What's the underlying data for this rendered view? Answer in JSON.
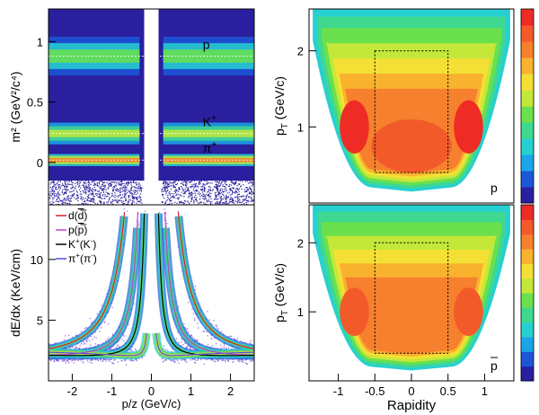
{
  "chart_data": [
    {
      "type": "heatmap",
      "panel": "top-left",
      "title": "",
      "xlabel": "",
      "ylabel": "m² (GeV²/c⁴)",
      "xlim": [
        -2.6,
        2.6
      ],
      "ylim": [
        -0.35,
        1.27
      ],
      "yticks": [
        0,
        0.5,
        1
      ],
      "ytick_labels": [
        "0",
        "0.5",
        "1"
      ],
      "bands": [
        {
          "label": "p",
          "label_sup": "",
          "m2": 0.88
        },
        {
          "label": "K",
          "label_sup": "+",
          "m2": 0.24
        },
        {
          "label": "π",
          "label_sup": "+",
          "m2": 0.02
        }
      ],
      "grid": false
    },
    {
      "type": "heatmap",
      "panel": "bottom-left",
      "title": "",
      "xlabel": "p/z (GeV/c)",
      "ylabel": "dE/dx (KeV/cm)",
      "xlim": [
        -2.6,
        2.6
      ],
      "ylim": [
        0,
        14.5
      ],
      "xticks": [
        -2,
        -1,
        0,
        1,
        2
      ],
      "xtick_labels": [
        "-2",
        "-1",
        "0",
        "1",
        "2"
      ],
      "yticks": [
        5,
        10
      ],
      "ytick_labels": [
        "5",
        "10"
      ],
      "legend_position": "top-left",
      "series": [
        {
          "name": "d(d̄)",
          "name_main": "d(",
          "name_bar": "d",
          "name_end": ")",
          "name_sup": "",
          "name_sup2": "",
          "color": "#e0202a",
          "mass": 1.876
        },
        {
          "name": "p(p̄)",
          "name_main": "p(",
          "name_bar": "p",
          "name_end": ")",
          "name_sup": "",
          "name_sup2": "",
          "color": "#c040c8",
          "mass": 0.938
        },
        {
          "name": "K⁺(K⁻)",
          "name_main": "K",
          "name_bar": "",
          "name_end": "(K",
          "name_sup": "+",
          "name_sup2": "-",
          "color": "#000000",
          "mass": 0.494
        },
        {
          "name": "π⁺(π⁻)",
          "name_main": "π",
          "name_bar": "",
          "name_end": "(π",
          "name_sup": "+",
          "name_sup2": "-",
          "color": "#5050e0",
          "mass": 0.1396
        }
      ],
      "grid": false
    },
    {
      "type": "heatmap",
      "panel": "top-right",
      "title": "",
      "xlabel": "",
      "ylabel": "pT (GeV/c)",
      "ylabel_main": "p",
      "ylabel_sub": "T",
      "ylabel_rest": " (GeV/c)",
      "xlim": [
        -1.4,
        1.4
      ],
      "ylim": [
        0,
        2.55
      ],
      "yticks": [
        1,
        2
      ],
      "ytick_labels": [
        "1",
        "2"
      ],
      "particle_label": "p",
      "particle_bar": false,
      "acceptance_box": {
        "rapidity": [
          -0.5,
          0.5
        ],
        "pt": [
          0.4,
          2.0
        ]
      },
      "grid": false
    },
    {
      "type": "heatmap",
      "panel": "bottom-right",
      "title": "",
      "xlabel": "Rapidity",
      "ylabel": "pT (GeV/c)",
      "ylabel_main": "p",
      "ylabel_sub": "T",
      "ylabel_rest": " (GeV/c)",
      "xlim": [
        -1.4,
        1.4
      ],
      "ylim": [
        0,
        2.55
      ],
      "xticks": [
        -1,
        -0.5,
        0,
        0.5,
        1
      ],
      "xtick_labels": [
        "-1",
        "-0.5",
        "0",
        "0.5",
        "1"
      ],
      "yticks": [
        1,
        2
      ],
      "ytick_labels": [
        "1",
        "2"
      ],
      "particle_label": "p",
      "particle_bar": true,
      "acceptance_box": {
        "rapidity": [
          -0.5,
          0.5
        ],
        "pt": [
          0.4,
          2.0
        ]
      },
      "grid": false
    }
  ],
  "colors": {
    "palette": [
      "#ffffff",
      "#2a1f9e",
      "#1c57d8",
      "#1aa6e6",
      "#27d0d0",
      "#3fd890",
      "#6ae04c",
      "#c4e83a",
      "#f4e034",
      "#f9b22e",
      "#f6802d",
      "#f35a2a",
      "#ef2b25"
    ],
    "axis": "#000000",
    "box": "#000000"
  }
}
